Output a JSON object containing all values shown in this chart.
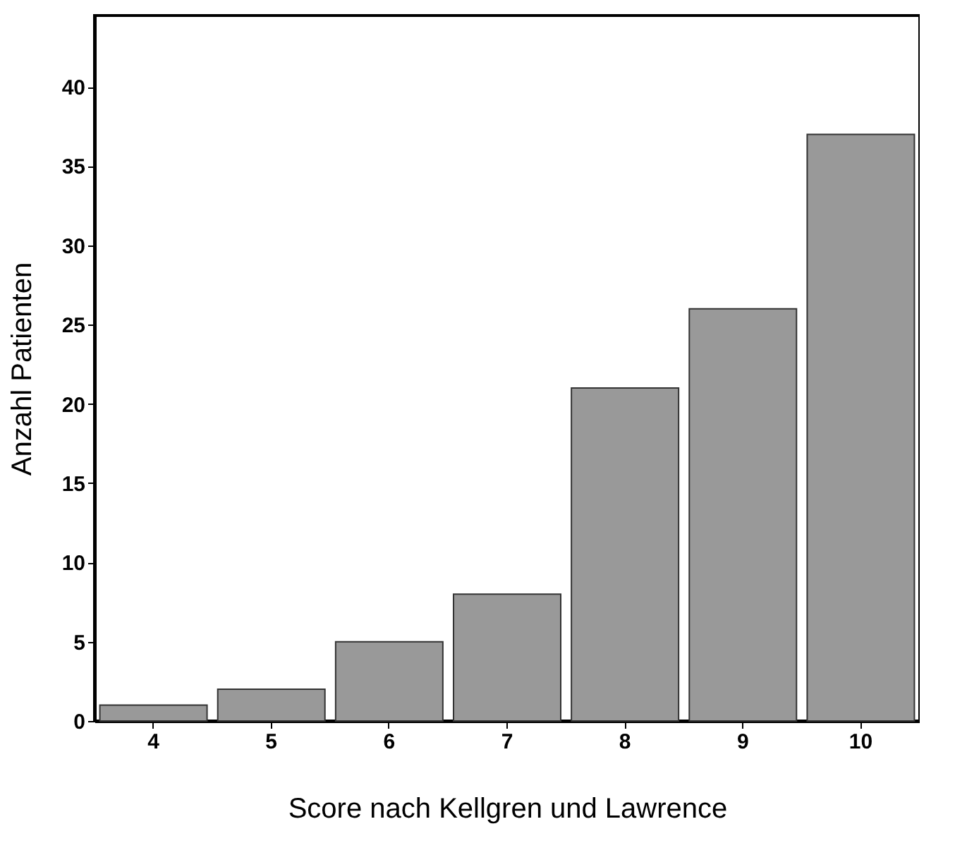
{
  "chart_data": {
    "type": "bar",
    "xlabel": "Score nach Kellgren und Lawrence",
    "ylabel": "Anzahl Patienten",
    "categories": [
      "4",
      "5",
      "6",
      "7",
      "8",
      "9",
      "10"
    ],
    "values": [
      1,
      2,
      5,
      8,
      21,
      26,
      37
    ],
    "color": "#999999",
    "ylim": [
      0,
      44.5
    ],
    "yticks": [
      0,
      5,
      10,
      15,
      20,
      25,
      30,
      35,
      40
    ],
    "grid": false
  }
}
